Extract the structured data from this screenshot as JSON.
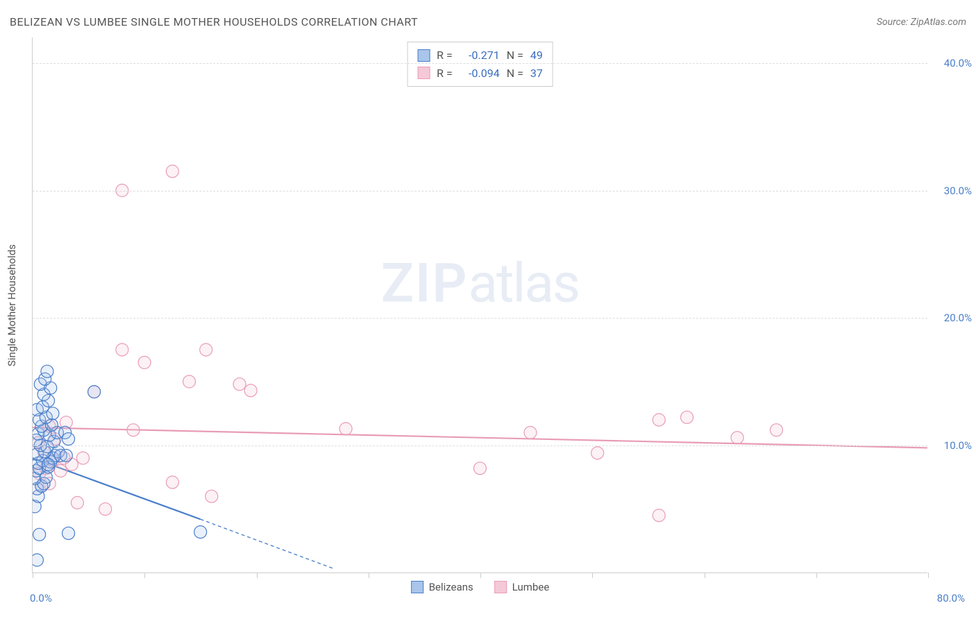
{
  "header": {
    "title": "BELIZEAN VS LUMBEE SINGLE MOTHER HOUSEHOLDS CORRELATION CHART",
    "source": "Source: ZipAtlas.com"
  },
  "watermark": {
    "zip": "ZIP",
    "atlas": "atlas"
  },
  "chart": {
    "type": "scatter",
    "y_axis_title": "Single Mother Households",
    "xlim": [
      0,
      80
    ],
    "ylim": [
      0,
      42
    ],
    "x_ticks": [
      0,
      10,
      20,
      30,
      40,
      50,
      60,
      70,
      80
    ],
    "x_tick_labels_shown": {
      "min": "0.0%",
      "max": "80.0%"
    },
    "y_ticks": [
      10,
      20,
      30,
      40
    ],
    "y_tick_labels": [
      "10.0%",
      "20.0%",
      "30.0%",
      "40.0%"
    ],
    "grid_color": "#dddddd",
    "axis_color": "#cccccc",
    "background_color": "#ffffff",
    "label_color": "#4a7ec9",
    "title_fontsize": 16,
    "label_fontsize": 15,
    "marker_radius": 9,
    "marker_stroke_width": 1.2,
    "marker_fill_opacity": 0.25,
    "trend_line_width": 2.2,
    "trend_dash": "5,4"
  },
  "series": {
    "belizeans": {
      "label": "Belizeans",
      "color_stroke": "#4a7ec9",
      "color_fill": "#a9c5ea",
      "r": "-0.271",
      "n": "49",
      "trend": {
        "x1": 0,
        "y1": 9.0,
        "x2_solid": 15,
        "y2_solid": 4.2,
        "x2_dash": 27,
        "y2_dash": 0.3
      },
      "points": [
        [
          0.4,
          1.0
        ],
        [
          0.6,
          3.0
        ],
        [
          3.2,
          3.1
        ],
        [
          0.2,
          5.2
        ],
        [
          0.5,
          6.0
        ],
        [
          0.4,
          6.6
        ],
        [
          0.8,
          6.8
        ],
        [
          1.0,
          7.0
        ],
        [
          0.2,
          7.4
        ],
        [
          1.2,
          7.5
        ],
        [
          0.3,
          8.0
        ],
        [
          0.6,
          8.2
        ],
        [
          1.4,
          8.3
        ],
        [
          0.5,
          8.6
        ],
        [
          0.9,
          8.8
        ],
        [
          1.6,
          8.7
        ],
        [
          1.8,
          9.0
        ],
        [
          0.4,
          9.3
        ],
        [
          2.0,
          9.2
        ],
        [
          1.1,
          9.5
        ],
        [
          2.3,
          9.5
        ],
        [
          1.3,
          9.9
        ],
        [
          0.7,
          10.0
        ],
        [
          2.5,
          9.2
        ],
        [
          0.3,
          10.4
        ],
        [
          1.9,
          10.3
        ],
        [
          3.0,
          9.2
        ],
        [
          0.5,
          10.9
        ],
        [
          1.5,
          10.8
        ],
        [
          1.0,
          11.2
        ],
        [
          2.2,
          11.0
        ],
        [
          0.8,
          11.5
        ],
        [
          1.7,
          11.6
        ],
        [
          5.5,
          14.2
        ],
        [
          0.6,
          12.0
        ],
        [
          1.2,
          12.2
        ],
        [
          2.9,
          11.0
        ],
        [
          0.4,
          12.8
        ],
        [
          1.8,
          12.5
        ],
        [
          3.2,
          10.5
        ],
        [
          0.9,
          13.0
        ],
        [
          1.4,
          13.5
        ],
        [
          1.0,
          14.0
        ],
        [
          0.7,
          14.8
        ],
        [
          1.6,
          14.5
        ],
        [
          1.1,
          15.2
        ],
        [
          1.3,
          15.8
        ],
        [
          15.0,
          3.2
        ],
        [
          1.4,
          8.5
        ]
      ]
    },
    "lumbee": {
      "label": "Lumbee",
      "color_stroke": "#e89cb5",
      "color_fill": "#f5c9d7",
      "r": "-0.094",
      "n": "37",
      "trend": {
        "x1": 0,
        "y1": 11.4,
        "x2_solid": 80,
        "y2_solid": 9.8,
        "x2_dash": 80,
        "y2_dash": 9.8
      },
      "points": [
        [
          0.8,
          6.8
        ],
        [
          1.5,
          7.0
        ],
        [
          4.0,
          5.5
        ],
        [
          6.5,
          5.0
        ],
        [
          0.6,
          7.8
        ],
        [
          1.2,
          8.2
        ],
        [
          2.5,
          8.0
        ],
        [
          1.8,
          8.8
        ],
        [
          2.8,
          9.0
        ],
        [
          3.5,
          8.5
        ],
        [
          1.0,
          9.5
        ],
        [
          4.5,
          9.0
        ],
        [
          0.5,
          10.2
        ],
        [
          2.0,
          10.5
        ],
        [
          12.5,
          7.1
        ],
        [
          16.0,
          6.0
        ],
        [
          1.5,
          11.5
        ],
        [
          3.0,
          11.8
        ],
        [
          9.0,
          11.2
        ],
        [
          5.5,
          14.2
        ],
        [
          8.0,
          17.5
        ],
        [
          10.0,
          16.5
        ],
        [
          14.0,
          15.0
        ],
        [
          18.5,
          14.8
        ],
        [
          19.5,
          14.3
        ],
        [
          15.5,
          17.5
        ],
        [
          28.0,
          11.3
        ],
        [
          40.0,
          8.2
        ],
        [
          44.5,
          11.0
        ],
        [
          50.5,
          9.4
        ],
        [
          56.0,
          12.0
        ],
        [
          58.5,
          12.2
        ],
        [
          63.0,
          10.6
        ],
        [
          66.5,
          11.2
        ],
        [
          56.0,
          4.5
        ],
        [
          8.0,
          30.0
        ],
        [
          12.5,
          31.5
        ]
      ]
    }
  },
  "legend": {
    "stats_labels": {
      "r": "R =",
      "n": "N ="
    }
  }
}
